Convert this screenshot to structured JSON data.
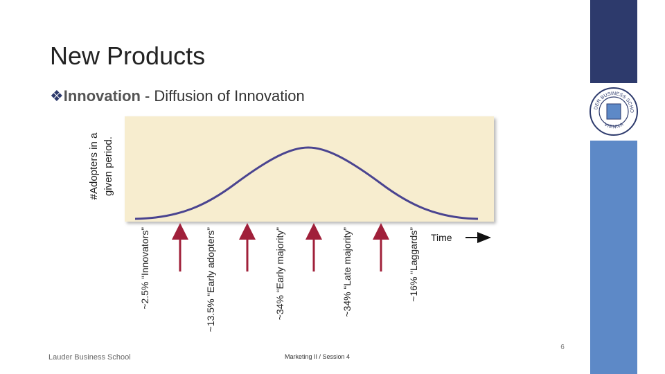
{
  "header": {
    "title": "New Products"
  },
  "bullet": {
    "term": "Innovation",
    "rest": "- Diffusion of Innovation"
  },
  "diagram": {
    "y_label": [
      "#Adopters in a",
      "given period."
    ],
    "x_label": "Time",
    "segments": [
      "~2.5% “Innovators”",
      "~13.5% “Early adopters”",
      "~34% “Early majority”",
      "~34% “Late majority”",
      "~16% “Laggards”"
    ]
  },
  "logo": {
    "top": "LAUDER BUSINESS SCHOOL",
    "bottom": "VIENNA"
  },
  "footer": {
    "left": "Lauder Business School",
    "center": "Marketing II / Session 4",
    "page": "6"
  }
}
